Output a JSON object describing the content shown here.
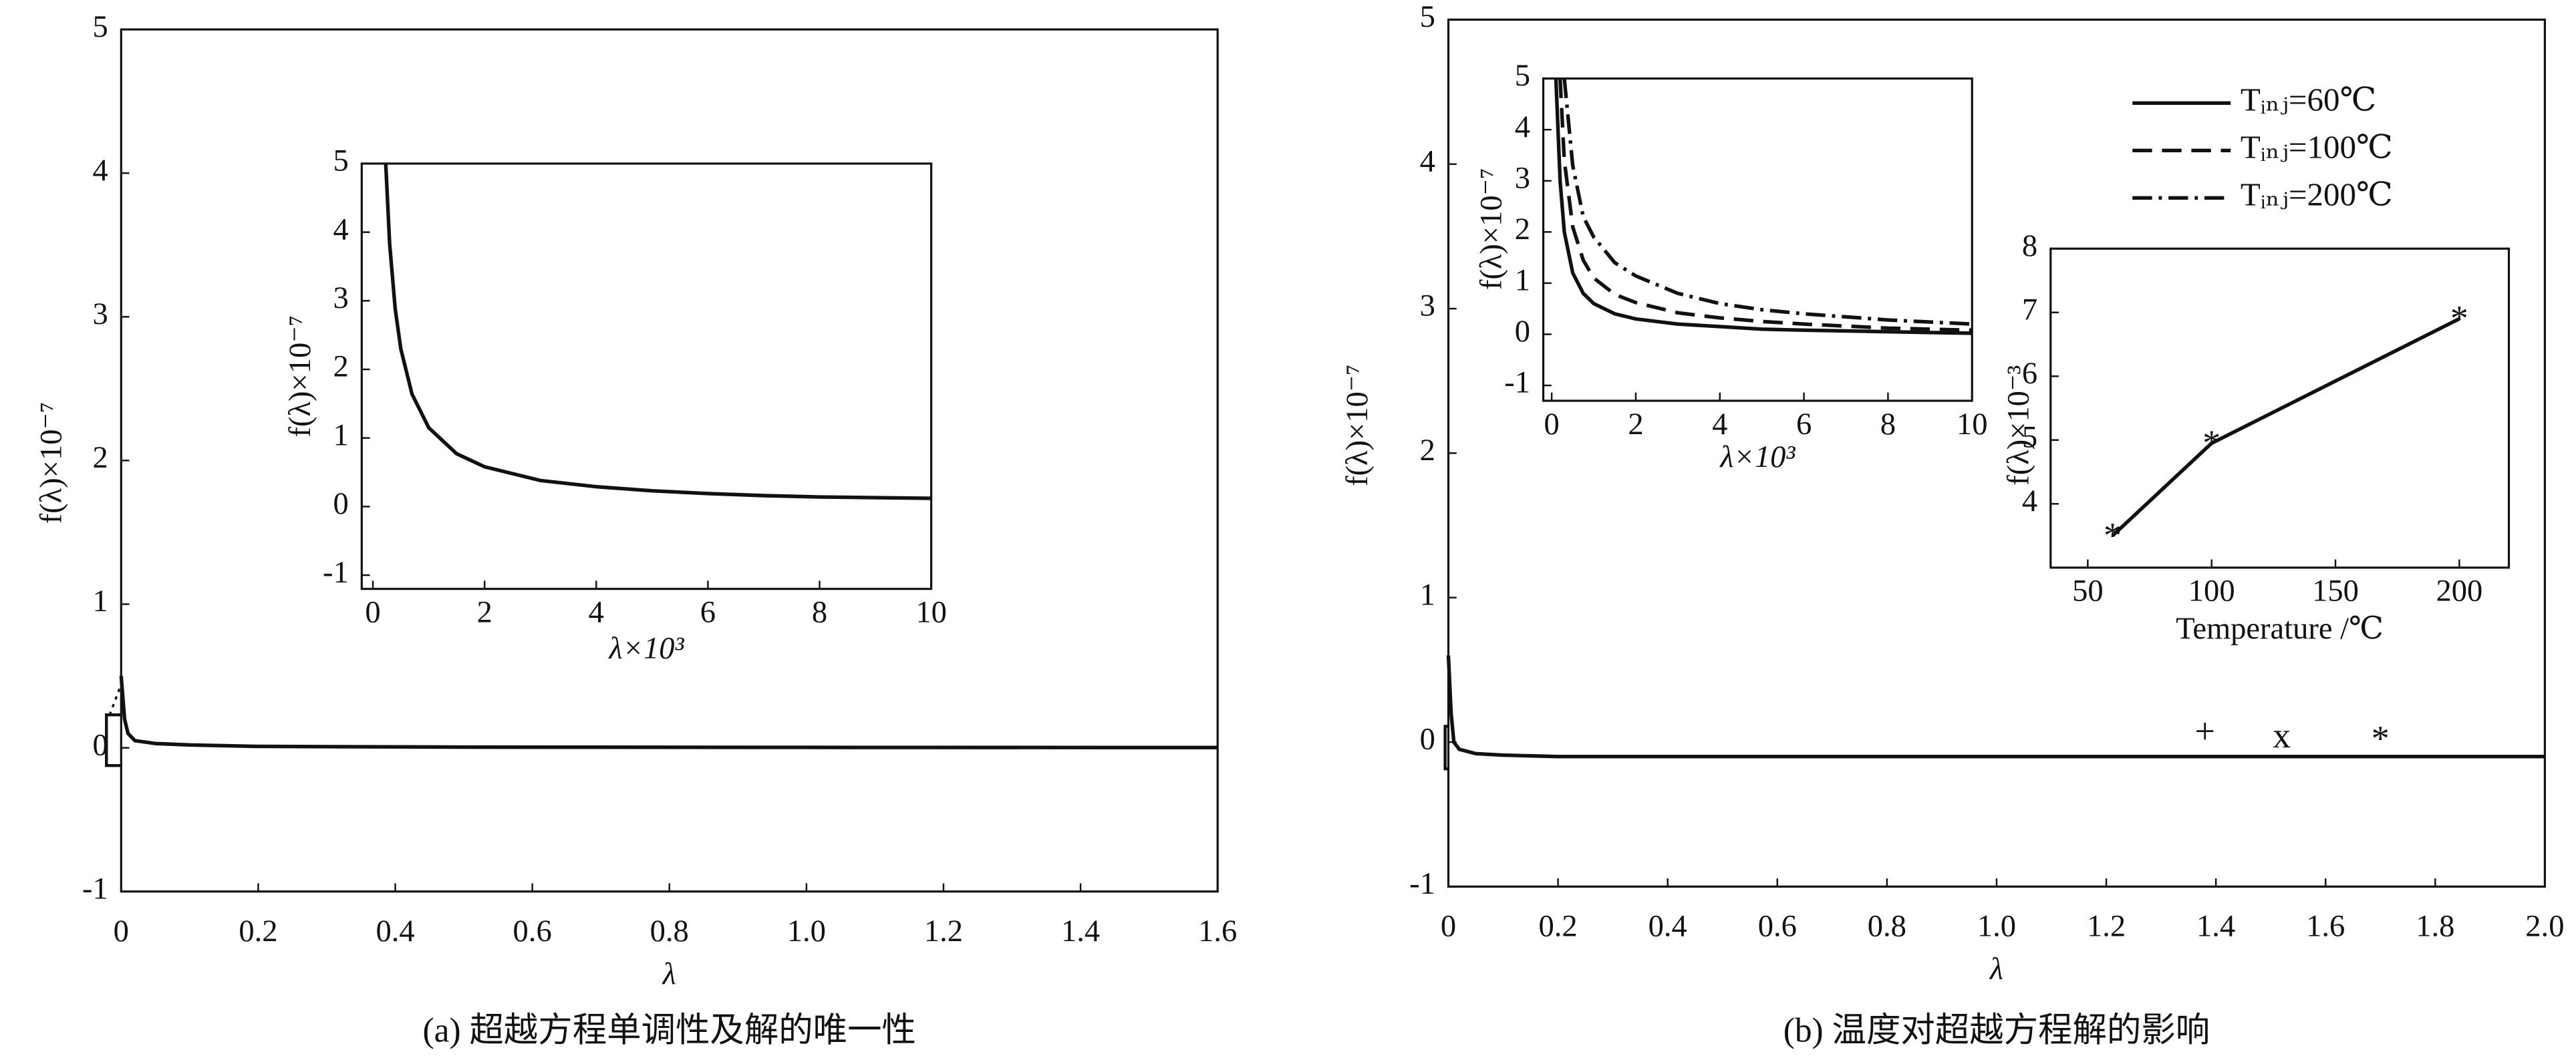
{
  "chart_data": [
    {
      "type": "line",
      "caption": "(a) 超越方程单调性及解的唯一性",
      "xlabel": "λ",
      "ylabel": "f(λ)×10⁻⁷",
      "xlim": [
        0,
        1.6
      ],
      "ylim": [
        -1,
        5
      ],
      "xticks": [
        0,
        0.2,
        0.4,
        0.6,
        0.8,
        {
          "value": 1,
          "label": "1.0"
        },
        1.2,
        1.4,
        1.6
      ],
      "yticks": [
        -1,
        0,
        1,
        2,
        3,
        4,
        5
      ],
      "series": [
        {
          "color": "#111111",
          "dash": "solid",
          "x": [
            0,
            0.005,
            0.01,
            0.02,
            0.05,
            0.1,
            0.2,
            0.5,
            1.0,
            1.5,
            1.6
          ],
          "values": [
            0.5,
            0.2,
            0.1,
            0.05,
            0.03,
            0.02,
            0.01,
            0.005,
            0.003,
            0.002,
            0.002
          ]
        }
      ]
    },
    {
      "type": "line",
      "xlabel": "λ×10³",
      "ylabel": "f(λ)×10⁻⁷",
      "xlim": [
        -0.2,
        10
      ],
      "ylim": [
        -1.2,
        5
      ],
      "xticks": [
        0,
        2,
        4,
        6,
        8,
        10
      ],
      "yticks": [
        -1,
        0,
        1,
        2,
        3,
        4,
        5
      ],
      "series": [
        {
          "color": "#111111",
          "dash": "solid",
          "x": [
            0.23,
            0.3,
            0.4,
            0.5,
            0.7,
            1,
            1.5,
            2,
            3,
            4,
            5,
            6,
            7,
            8,
            9,
            10
          ],
          "values": [
            5,
            3.83,
            2.88,
            2.3,
            1.64,
            1.15,
            0.77,
            0.58,
            0.38,
            0.29,
            0.23,
            0.19,
            0.16,
            0.14,
            0.13,
            0.12
          ]
        }
      ]
    },
    {
      "type": "line",
      "caption": "(b) 温度对超越方程解的影响",
      "xlabel": "λ",
      "ylabel": "f(λ)×10⁻⁷",
      "xlim": [
        0,
        2
      ],
      "ylim": [
        -1,
        5
      ],
      "xticks": [
        0,
        0.2,
        0.4,
        0.6,
        0.8,
        {
          "value": 1,
          "label": "1.0"
        },
        1.2,
        1.4,
        1.6,
        1.8,
        {
          "value": 2,
          "label": "2.0"
        }
      ],
      "yticks": [
        -1,
        0,
        1,
        2,
        3,
        4,
        5
      ],
      "series": [
        {
          "color": "#111111",
          "dash": "solid",
          "x": [
            0,
            0.005,
            0.01,
            0.02,
            0.05,
            0.1,
            0.2,
            0.5,
            1,
            1.5,
            2
          ],
          "values": [
            0.6,
            0.2,
            0,
            -0.05,
            -0.08,
            -0.09,
            -0.1,
            -0.1,
            -0.1,
            -0.1,
            -0.1
          ]
        }
      ],
      "annotations": [
        {
          "text": "+",
          "x": 1.38,
          "y": 0.05
        },
        {
          "text": "x",
          "x": 1.52,
          "y": 0.02
        },
        {
          "text": "*",
          "x": 1.7,
          "y": 0.0
        }
      ]
    },
    {
      "type": "line",
      "xlabel": "λ×10³",
      "ylabel": "f(λ)×10⁻⁷",
      "xlim": [
        -0.2,
        10
      ],
      "ylim": [
        -1.3,
        5
      ],
      "xticks": [
        0,
        2,
        4,
        6,
        8,
        10
      ],
      "yticks": [
        -1,
        0,
        1,
        2,
        3,
        4,
        5
      ],
      "x": [
        0.1,
        0.2,
        0.3,
        0.5,
        0.75,
        1,
        1.5,
        2,
        3,
        4,
        5,
        6,
        8,
        10
      ],
      "series": [
        {
          "name": "Tᵢₙⱼ=60℃",
          "color": "#111111",
          "dash": "solid",
          "values": [
            5,
            3,
            2,
            1.2,
            0.8,
            0.6,
            0.4,
            0.3,
            0.2,
            0.15,
            0.1,
            0.08,
            0.05,
            0.02
          ]
        },
        {
          "name": "Tᵢₙⱼ=100℃",
          "color": "#111111",
          "dash": "dashed",
          "values": [
            null,
            5,
            3.4,
            2.1,
            1.45,
            1.1,
            0.78,
            0.62,
            0.42,
            0.32,
            0.25,
            0.2,
            0.12,
            0.08
          ]
        },
        {
          "name": "Tᵢₙⱼ=200℃",
          "color": "#111111",
          "dash": "dashdot",
          "values": [
            null,
            null,
            5,
            3.3,
            2.3,
            1.9,
            1.4,
            1.14,
            0.8,
            0.6,
            0.48,
            0.4,
            0.28,
            0.2
          ]
        }
      ]
    },
    {
      "type": "line",
      "xlabel": "Temperature /℃",
      "ylabel": "f(λ)×10⁻³",
      "xlim": [
        35,
        220
      ],
      "ylim": [
        3,
        8
      ],
      "xticks": [
        50,
        100,
        150,
        200
      ],
      "yticks": [
        4,
        5,
        6,
        7,
        8
      ],
      "series": [
        {
          "color": "#111111",
          "dash": "solid",
          "marker": "*",
          "x": [
            60,
            100,
            200
          ],
          "values": [
            3.5,
            4.95,
            6.9
          ]
        }
      ]
    }
  ]
}
